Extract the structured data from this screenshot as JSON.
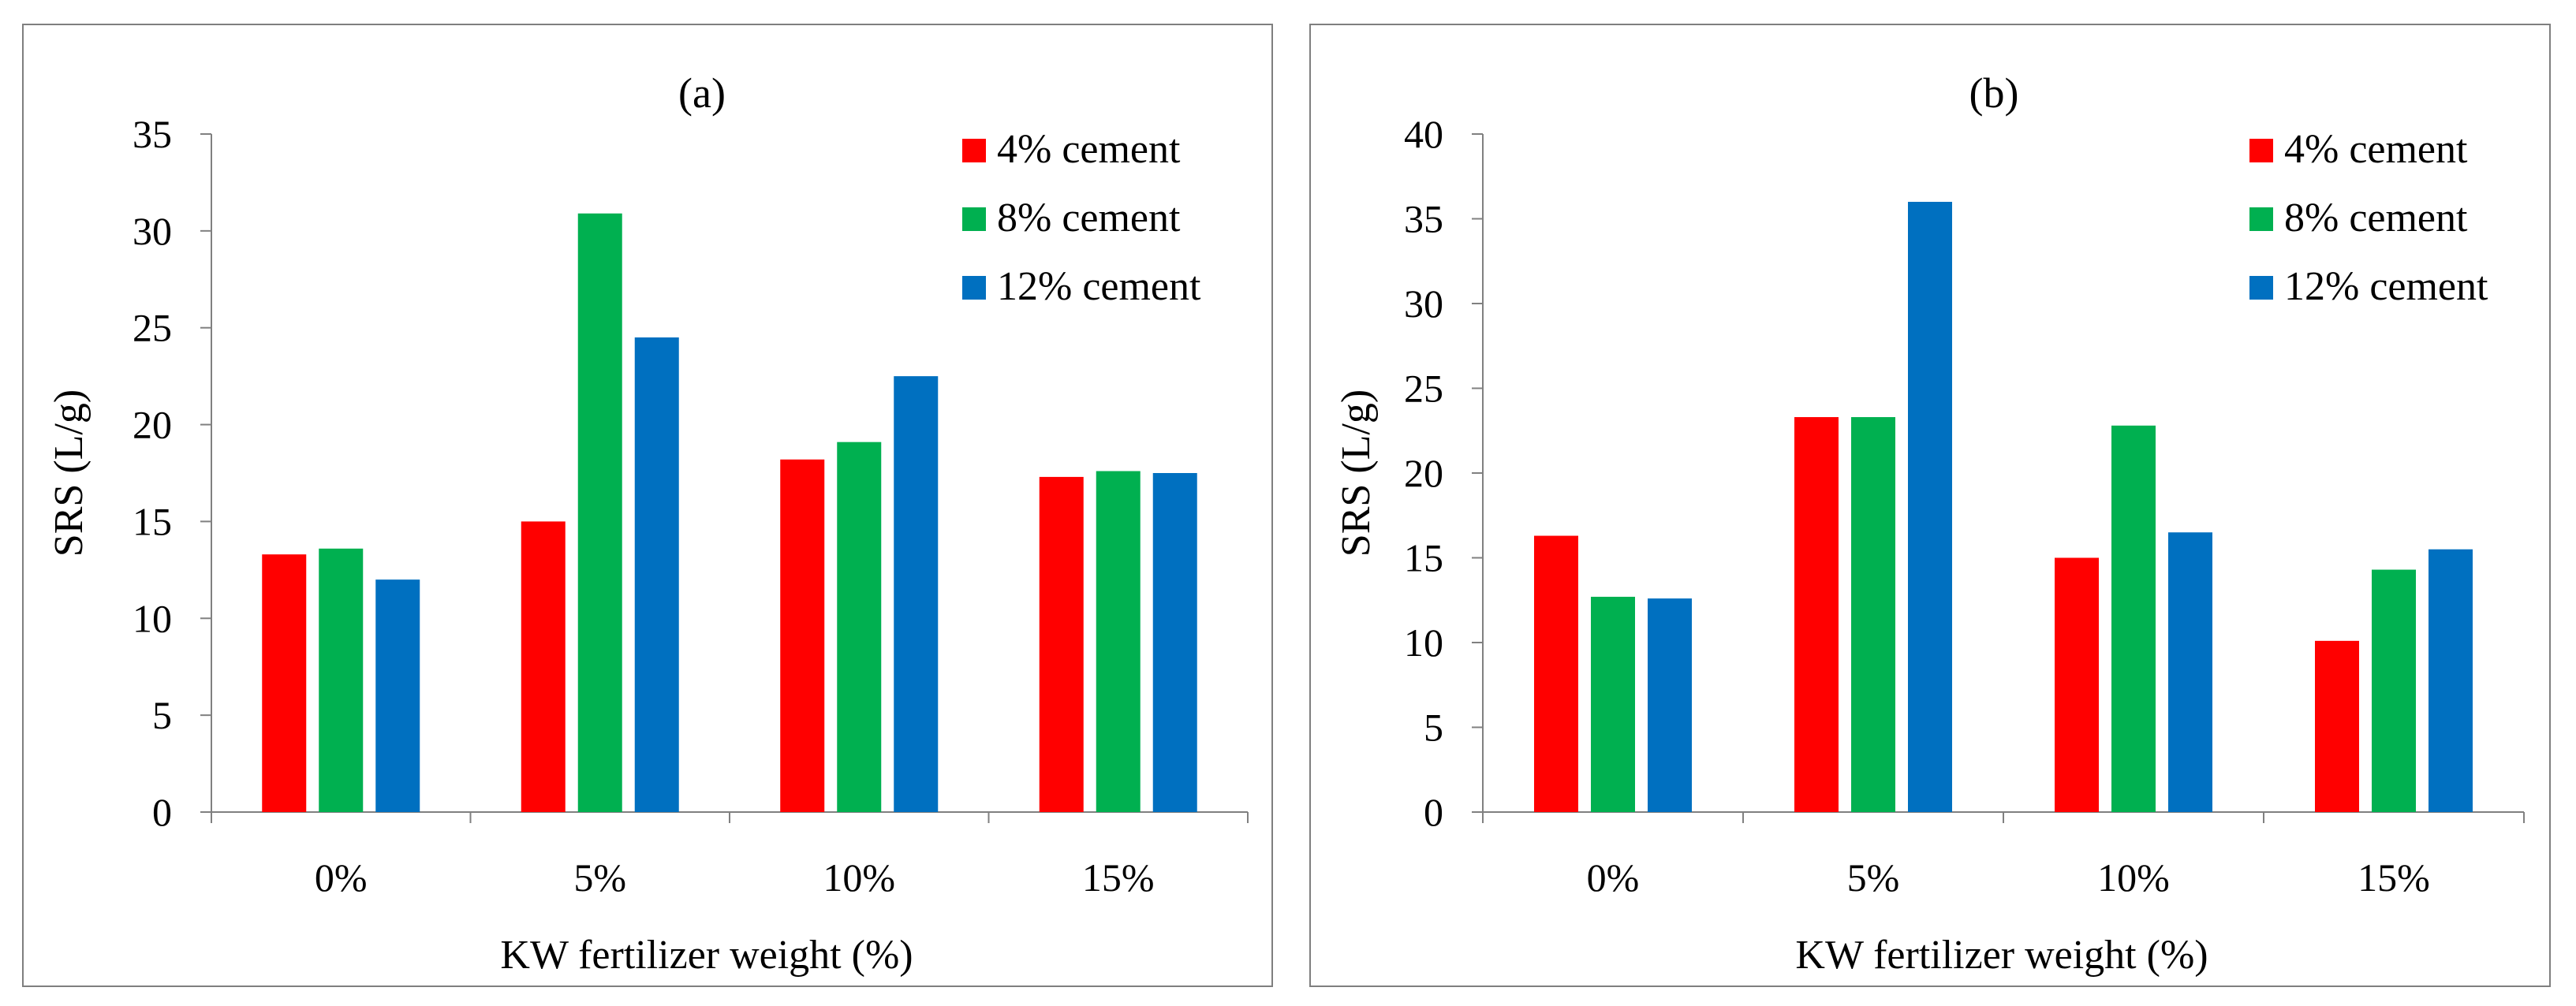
{
  "chart_data": [
    {
      "type": "bar",
      "title": "(a)",
      "xlabel": "KW fertilizer weight (%)",
      "ylabel": "SRS (L/g)",
      "categories": [
        "0%",
        "5%",
        "10%",
        "15%"
      ],
      "ylim": [
        0,
        35
      ],
      "yticks": [
        0,
        5,
        10,
        15,
        20,
        25,
        30,
        35
      ],
      "ytick_labels": [
        "0",
        "5",
        "10",
        "15",
        "20",
        "25",
        "30",
        "35"
      ],
      "grid": false,
      "legend_position": "top-right",
      "series": [
        {
          "name": "4% cement",
          "color": "#ff0000",
          "values": [
            13.3,
            15.0,
            18.2,
            17.3
          ]
        },
        {
          "name": "8% cement",
          "color": "#00b050",
          "values": [
            13.6,
            30.9,
            19.1,
            17.6
          ]
        },
        {
          "name": "12% cement",
          "color": "#0070c0",
          "values": [
            12.0,
            24.5,
            22.5,
            17.5
          ]
        }
      ]
    },
    {
      "type": "bar",
      "title": "(b)",
      "xlabel": "KW fertilizer weight (%)",
      "ylabel": "SRS (L/g)",
      "categories": [
        "0%",
        "5%",
        "10%",
        "15%"
      ],
      "ylim": [
        0,
        40
      ],
      "yticks": [
        0,
        5,
        10,
        15,
        20,
        25,
        30,
        35,
        40
      ],
      "ytick_labels": [
        "0",
        "5",
        "10",
        "15",
        "20",
        "25",
        "30",
        "35",
        "40"
      ],
      "grid": false,
      "legend_position": "top-right",
      "series": [
        {
          "name": "4% cement",
          "color": "#ff0000",
          "values": [
            16.3,
            23.3,
            15.0,
            10.1
          ]
        },
        {
          "name": "8% cement",
          "color": "#00b050",
          "values": [
            12.7,
            23.3,
            22.8,
            14.3
          ]
        },
        {
          "name": "12% cement",
          "color": "#0070c0",
          "values": [
            12.6,
            36.0,
            16.5,
            15.5
          ]
        }
      ]
    }
  ]
}
